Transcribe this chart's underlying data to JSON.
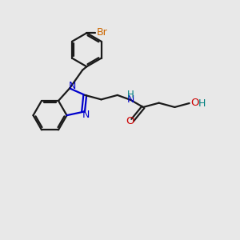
{
  "bg_color": "#e8e8e8",
  "bond_color": "#1a1a1a",
  "N_color": "#0000cc",
  "O_color": "#cc0000",
  "Br_color": "#cc6600",
  "H_color": "#008080",
  "lw": 1.6,
  "figsize": [
    3.0,
    3.0
  ],
  "dpi": 100,
  "xlim": [
    0,
    10
  ],
  "ylim": [
    0,
    10
  ]
}
